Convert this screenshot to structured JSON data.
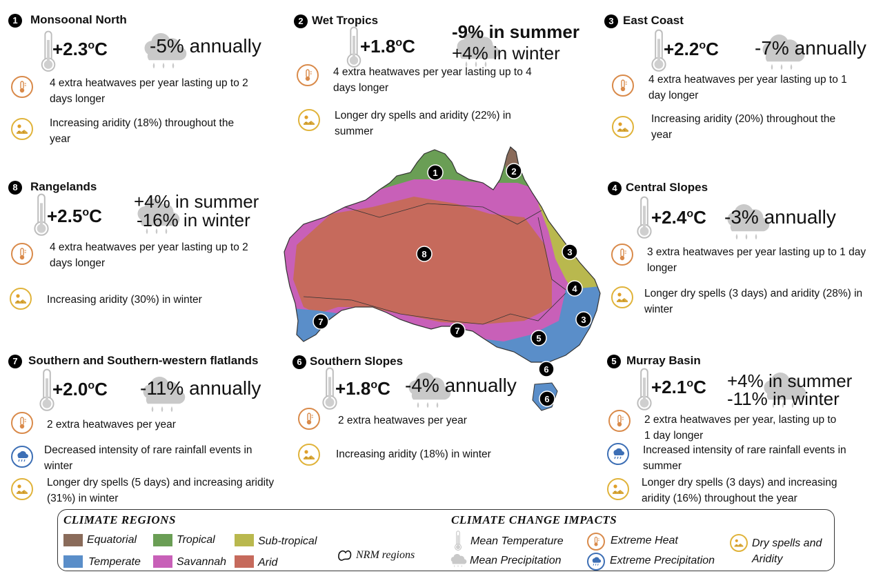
{
  "colors": {
    "equatorial": "#8a6b5a",
    "tropical": "#6a9e55",
    "subtropical": "#b9b84e",
    "temperate": "#5a8ec9",
    "savannah": "#c860b8",
    "arid": "#c66a5c",
    "heat_ring": "#d98a4a",
    "dry_ring": "#e0b33a",
    "rain_ring": "#3d6fb5"
  },
  "regions": [
    {
      "num": "1",
      "name": "Monsoonal  North",
      "temp": "+2.3",
      "temp_unit": "o",
      "temp_c": "C",
      "precip": [
        "-5% annually"
      ],
      "impacts": [
        {
          "type": "heat",
          "text": "4 extra heatwaves per year lasting up to 2 days longer"
        },
        {
          "type": "dry",
          "text": "Increasing aridity (18%)  throughout the year"
        }
      ]
    },
    {
      "num": "2",
      "name": "Wet Tropics",
      "temp": "+1.8",
      "temp_unit": "o",
      "temp_c": "C",
      "precip": [
        "-9% in summer",
        "+4% in winter"
      ],
      "impacts": [
        {
          "type": "heat",
          "text": "4 extra heatwaves per year lasting up to 4 days longer"
        },
        {
          "type": "dry",
          "text": "Longer dry spells and aridity (22%) in summer"
        }
      ]
    },
    {
      "num": "3",
      "name": "East Coast",
      "temp": "+2.2",
      "temp_unit": "o",
      "temp_c": "C",
      "precip": [
        "-7% annually"
      ],
      "impacts": [
        {
          "type": "heat",
          "text": "4 extra heatwaves per year lasting up to 1 day longer"
        },
        {
          "type": "dry",
          "text": "Increasing aridity (20%) throughout the year"
        }
      ]
    },
    {
      "num": "8",
      "name": "Rangelands",
      "temp": "+2.5",
      "temp_unit": "o",
      "temp_c": "C",
      "precip": [
        "+4% in summer",
        "-16% in winter"
      ],
      "impacts": [
        {
          "type": "heat",
          "text": "4 extra heatwaves per year lasting up to 2 days longer"
        },
        {
          "type": "dry",
          "text": "Increasing aridity (30%) in winter"
        }
      ]
    },
    {
      "num": "4",
      "name": "Central Slopes",
      "temp": "+2.4",
      "temp_unit": "o",
      "temp_c": "C",
      "precip": [
        "-3% annually"
      ],
      "impacts": [
        {
          "type": "heat",
          "text": "3 extra heatwaves per year lasting up to 1 day longer"
        },
        {
          "type": "dry",
          "text": "Longer dry spells (3 days) and aridity (28%) in winter"
        }
      ]
    },
    {
      "num": "7",
      "name": "Southern and Southern-western flatlands",
      "temp": "+2.0",
      "temp_unit": "o",
      "temp_c": "C",
      "precip": [
        "-11% annually"
      ],
      "impacts": [
        {
          "type": "heat",
          "text": "2 extra heatwaves per year"
        },
        {
          "type": "rain",
          "text": "Decreased intensity of rare rainfall events in winter"
        },
        {
          "type": "dry",
          "text": "Longer dry spells (5 days) and increasing aridity (31%) in winter"
        }
      ]
    },
    {
      "num": "6",
      "name": "Southern Slopes",
      "temp": "+1.8",
      "temp_unit": "o",
      "temp_c": "C",
      "precip": [
        "-4% annually"
      ],
      "impacts": [
        {
          "type": "heat",
          "text": "2 extra heatwaves per year"
        },
        {
          "type": "dry",
          "text": "Increasing aridity (18%)  in winter"
        }
      ]
    },
    {
      "num": "5",
      "name": "Murray Basin",
      "temp": "+2.1",
      "temp_unit": "o",
      "temp_c": "C",
      "precip": [
        "+4% in summer",
        "-11% in winter"
      ],
      "impacts": [
        {
          "type": "heat",
          "text": "2 extra heatwaves per year, lasting up to 1 day longer"
        },
        {
          "type": "rain",
          "text": "Increased intensity of rare rainfall events in summer"
        },
        {
          "type": "dry",
          "text": "Longer dry spells (3 days) and increasing aridity (16%) throughout the year"
        }
      ]
    }
  ],
  "map": {
    "badges": [
      "1",
      "2",
      "8",
      "3",
      "4",
      "3",
      "7",
      "7",
      "5",
      "6",
      "6"
    ]
  },
  "legend": {
    "regions_title": "CLIMATE REGIONS",
    "impacts_title": "CLIMATE CHANGE IMPACTS",
    "equatorial": "Equatorial",
    "tropical": "Tropical",
    "subtropical": "Sub-tropical",
    "temperate": "Temperate",
    "savannah": "Savannah",
    "arid": "Arid",
    "nrm": "NRM regions",
    "mean_temp": "Mean Temperature",
    "mean_precip": "Mean Precipitation",
    "extreme_heat": "Extreme Heat",
    "extreme_precip": "Extreme Precipitation",
    "dry_spells": "Dry spells and Aridity"
  }
}
